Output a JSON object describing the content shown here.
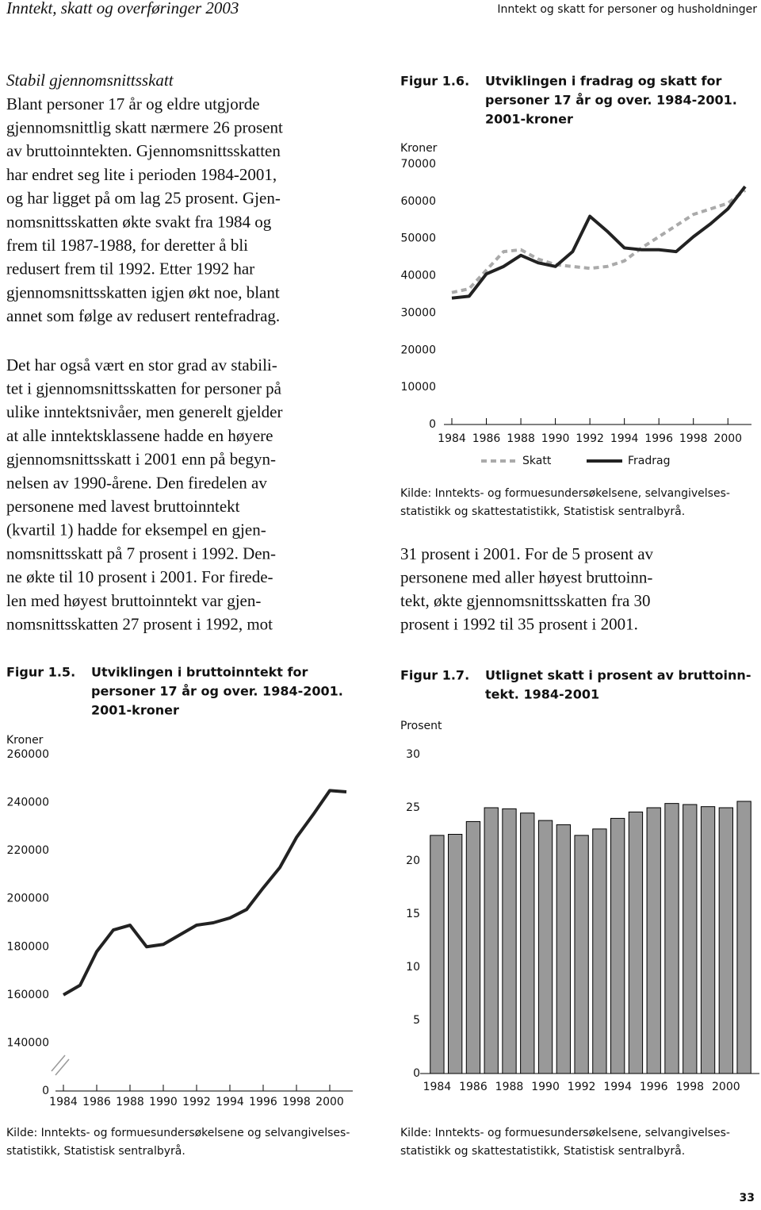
{
  "header": {
    "left": "Inntekt, skatt og overføringer 2003",
    "right": "Inntekt og skatt for personer og husholdninger"
  },
  "section_title": "Stabil gjennomsnittsskatt",
  "paragraphs": [
    [
      "Blant personer 17 år og eldre utgjorde",
      "gjennomsnittlig skatt nærmere 26 prosent",
      "av bruttoinntekten. Gjennomsnittsskatten",
      "har endret seg lite i perioden 1984-2001,",
      "og har ligget på om lag 25 prosent. Gjen-",
      "nomsnittsskatten økte svakt fra 1984 og",
      "frem til 1987-1988, for deretter å bli",
      "redusert frem til 1992. Etter 1992 har",
      "gjennomsnittsskatten igjen økt noe, blant",
      "annet som følge av redusert rentefradrag."
    ],
    [
      "Det har også vært en stor grad av stabili-",
      "tet i gjennomsnittsskatten for personer på",
      "ulike inntektsnivåer, men generelt gjelder",
      "at alle inntektsklassene hadde en høyere",
      "gjennomsnittsskatt i 2001 enn på begyn-",
      "nelsen av 1990-årene. Den firedelen av",
      "personene med lavest bruttoinntekt",
      "(kvartil 1) hadde for eksempel en gjen-",
      "nomsnittsskatt på 7 prosent i 1992. Den-",
      "ne økte til 10 prosent i 2001. For firede-",
      "len med høyest bruttoinntekt var gjen-",
      "nomsnittsskatten 27 prosent i 1992, mot"
    ],
    [
      "31 prosent i 2001. For de 5 prosent av",
      "personene med aller høyest bruttoinn-",
      "tekt, økte gjennomsnittsskatten fra 30",
      "prosent i 1992 til 35 prosent i 2001."
    ]
  ],
  "page_number": "33",
  "chart_data": [
    {
      "type": "line",
      "figure_label": "Figur 1.6.",
      "title": [
        "Utviklingen i fradrag og skatt for",
        "personer 17 år og over. 1984-2001.",
        "2001-kroner"
      ],
      "y_label": "Kroner",
      "x": [
        1984,
        1985,
        1986,
        1987,
        1988,
        1989,
        1990,
        1991,
        1992,
        1993,
        1994,
        1995,
        1996,
        1997,
        1998,
        1999,
        2000,
        2001
      ],
      "xlim": [
        1984,
        2001
      ],
      "xticks": [
        1984,
        1986,
        1988,
        1990,
        1992,
        1994,
        1996,
        1998,
        2000
      ],
      "series": [
        {
          "name": "Skatt",
          "color": "#aaaaaa",
          "dashed": true,
          "values": [
            35500,
            36500,
            41500,
            46500,
            47000,
            44500,
            43000,
            42500,
            42000,
            42500,
            44000,
            47500,
            50500,
            53500,
            56500,
            58000,
            59500,
            63000
          ]
        },
        {
          "name": "Fradrag",
          "color": "#222222",
          "dashed": false,
          "values": [
            34000,
            34500,
            40500,
            42500,
            45500,
            43500,
            42500,
            46500,
            56000,
            52000,
            47500,
            47000,
            47000,
            46500,
            50500,
            54000,
            58000,
            64000
          ]
        }
      ],
      "ylim": [
        0,
        70000
      ],
      "yticks": [
        0,
        10000,
        20000,
        30000,
        40000,
        50000,
        60000,
        70000
      ],
      "legend": "bottom",
      "source": [
        "Kilde: Inntekts- og formuesundersøkelsene, selvangivelses-",
        "statistikk og skattestatistikk, Statistisk sentralbyrå."
      ]
    },
    {
      "type": "line",
      "figure_label": "Figur 1.5.",
      "title": [
        "Utviklingen i bruttoinntekt for",
        "personer 17 år og over. 1984-2001.",
        "2001-kroner"
      ],
      "y_label": "Kroner",
      "x": [
        1984,
        1985,
        1986,
        1987,
        1988,
        1989,
        1990,
        1991,
        1992,
        1993,
        1994,
        1995,
        1996,
        1997,
        1998,
        1999,
        2000,
        2001
      ],
      "xlim": [
        1984,
        2001
      ],
      "xticks": [
        1984,
        1986,
        1988,
        1990,
        1992,
        1994,
        1996,
        1998,
        2000
      ],
      "series": [
        {
          "color": "#222222",
          "dashed": false,
          "values": [
            160000,
            164000,
            178000,
            187000,
            189000,
            180000,
            181000,
            185000,
            189000,
            190000,
            192000,
            195500,
            204500,
            213000,
            225500,
            235000,
            245000,
            244500
          ]
        }
      ],
      "ylim": [
        120000,
        260000
      ],
      "yticks": [
        0,
        140000,
        160000,
        180000,
        200000,
        220000,
        240000,
        260000
      ],
      "axis_break": true,
      "source": [
        "Kilde: Inntekts- og formuesundersøkelsene og selvangivelses-",
        "statistikk, Statistisk sentralbyrå."
      ]
    },
    {
      "type": "bar",
      "figure_label": "Figur 1.7.",
      "title": [
        "Utlignet skatt i prosent av bruttoinn-",
        "tekt. 1984-2001"
      ],
      "y_label": "Prosent",
      "categories": [
        "1984",
        null,
        "1986",
        null,
        "1988",
        null,
        "1990",
        null,
        "1992",
        null,
        "1994",
        null,
        "1996",
        null,
        "1998",
        null,
        "2000",
        null
      ],
      "values": [
        22.4,
        22.5,
        23.7,
        25.0,
        24.9,
        24.5,
        23.8,
        23.4,
        22.4,
        23.0,
        24.0,
        24.6,
        25.0,
        25.4,
        25.3,
        25.1,
        25.0,
        25.6
      ],
      "color": "#999999",
      "ylim": [
        0,
        30
      ],
      "yticks": [
        0,
        5,
        10,
        15,
        20,
        25,
        30
      ],
      "source": [
        "Kilde: Inntekts- og formuesundersøkelsene, selvangivelses-",
        "statistikk og skattestatistikk, Statistisk sentralbyrå."
      ]
    }
  ]
}
